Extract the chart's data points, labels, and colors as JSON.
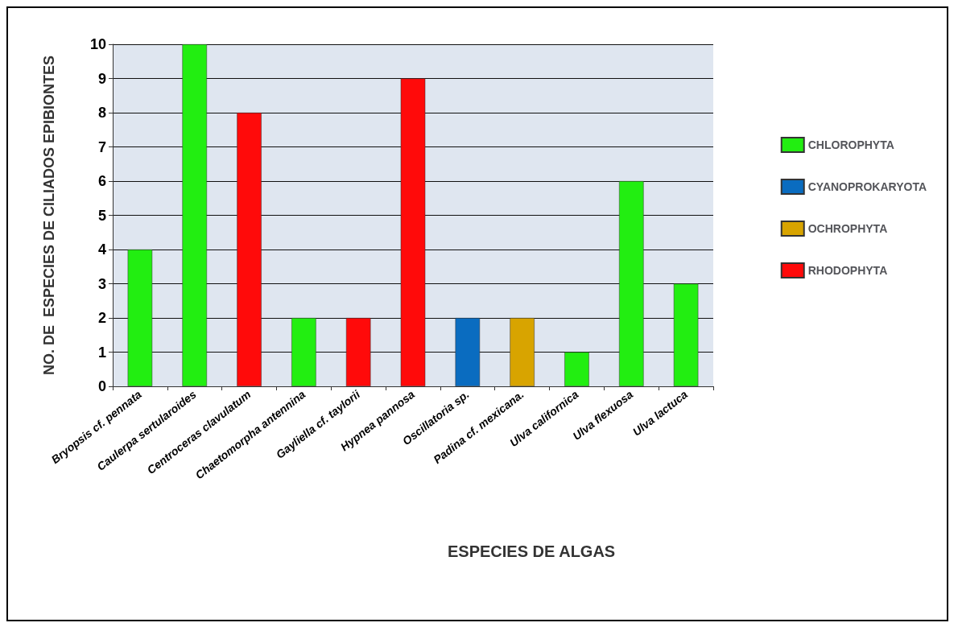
{
  "chart_data": {
    "type": "bar",
    "xlabel": "ESPECIES DE ALGAS",
    "ylabel": "NO. DE  ESPECIES DE CILIADOS EPIBIONTES",
    "categories": [
      "Bryopsis cf. pennata",
      "Caulerpa sertularoides",
      "Centroceras clavulatum",
      "Chaetomorpha antennina",
      "Gayliella cf. taylorii",
      "Hypnea pannosa",
      "Oscillatoria sp.",
      "Padina cf. mexicana.",
      "Ulva californica",
      "Ulva flexuosa",
      "Ulva lactuca"
    ],
    "series": [
      {
        "name": "CHLOROPHYTA",
        "color": "#22ee11",
        "values": [
          4,
          10,
          null,
          2,
          null,
          null,
          null,
          null,
          1,
          6,
          3
        ]
      },
      {
        "name": "CYANOPROKARYOTA",
        "color": "#0a6cc0",
        "values": [
          null,
          null,
          null,
          null,
          null,
          null,
          2,
          null,
          null,
          null,
          null
        ]
      },
      {
        "name": "OCHROPHYTA",
        "color": "#d8a400",
        "values": [
          null,
          null,
          null,
          null,
          null,
          null,
          null,
          2,
          null,
          null,
          null
        ]
      },
      {
        "name": "RHODOPHYTA",
        "color": "#ff0a0a",
        "values": [
          null,
          null,
          8,
          null,
          2,
          9,
          null,
          null,
          null,
          null,
          null
        ]
      }
    ],
    "stacked": true,
    "ylim": [
      0,
      10
    ],
    "yticks": [
      0,
      1,
      2,
      3,
      4,
      5,
      6,
      7,
      8,
      9,
      10
    ],
    "grid": "y",
    "legend": "right"
  }
}
